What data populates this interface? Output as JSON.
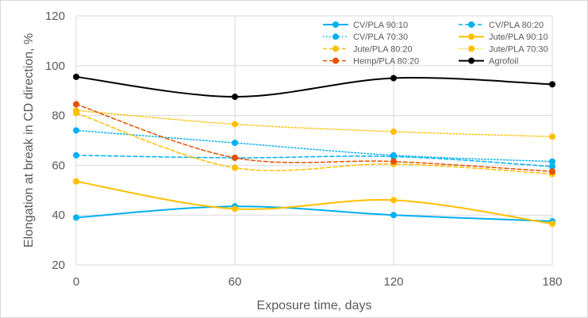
{
  "chart_data": {
    "type": "line",
    "title": "",
    "xlabel": "Exposure time, days",
    "ylabel": "Elongation at break in CD direction, %",
    "x": [
      0,
      60,
      120,
      180
    ],
    "xlim": [
      0,
      180
    ],
    "ylim": [
      20,
      120
    ],
    "yticks": [
      20,
      40,
      60,
      80,
      100,
      120
    ],
    "xticks": [
      0,
      60,
      120,
      180
    ],
    "grid": true,
    "legend_position": "top-right",
    "series": [
      {
        "name": "CV/PLA 90:10",
        "values": [
          39,
          43.5,
          40,
          37.5
        ],
        "color": "#00b0f0",
        "dash": "solid",
        "width": 2
      },
      {
        "name": "CV/PLA 80:20",
        "values": [
          64,
          63,
          63.5,
          59.5
        ],
        "color": "#00b0f0",
        "dash": "dashed",
        "width": 1.5
      },
      {
        "name": "CV/PLA 70:30",
        "values": [
          74,
          69,
          64,
          61.5
        ],
        "color": "#00b0f0",
        "dash": "dotted",
        "width": 1.5
      },
      {
        "name": "Jute/PLA 90:10",
        "values": [
          53.5,
          42.5,
          46,
          36.5
        ],
        "color": "#ffc000",
        "dash": "solid",
        "width": 2
      },
      {
        "name": "Jute/PLA 80:20",
        "values": [
          81,
          59,
          60.5,
          56.5
        ],
        "color": "#ffc000",
        "dash": "dashed",
        "width": 1.5
      },
      {
        "name": "Jute/PLA 70:30",
        "values": [
          82,
          76.5,
          73.5,
          71.5
        ],
        "color": "#ffc000",
        "dash": "dotted",
        "width": 1.5
      },
      {
        "name": "Hemp/PLA 80:20",
        "values": [
          84.5,
          63,
          61.5,
          57.5
        ],
        "color": "#e55100",
        "dash": "dashed",
        "width": 1.5
      },
      {
        "name": "Agrofoil",
        "values": [
          95.5,
          87.5,
          95,
          92.5
        ],
        "color": "#000000",
        "dash": "solid",
        "width": 2
      }
    ]
  }
}
